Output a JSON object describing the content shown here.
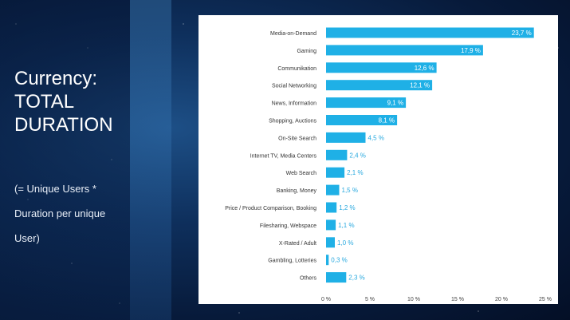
{
  "slide": {
    "title": "Currency: TOTAL DURATION",
    "subtitle": "(= Unique Users * Duration per unique User)"
  },
  "colors": {
    "bar": "#1fb0e6",
    "background": "#0e2f5c"
  },
  "chart_data": {
    "type": "bar",
    "orientation": "horizontal",
    "categories": [
      "Media-on-Demand",
      "Gaming",
      "Communikation",
      "Social Networking",
      "News, Information",
      "Shopping, Auctions",
      "On-Site Search",
      "Internet TV, Media Centers",
      "Web Search",
      "Banking, Money",
      "Price / Product Comparison, Booking",
      "Filesharing, Webspace",
      "X-Rated / Adult",
      "Gambling, Lotteries",
      "Others"
    ],
    "values": [
      23.7,
      17.9,
      12.6,
      12.1,
      9.1,
      8.1,
      4.5,
      2.4,
      2.1,
      1.5,
      1.2,
      1.1,
      1.0,
      0.3,
      2.3
    ],
    "value_labels": [
      "23,7 %",
      "17,9 %",
      "12,6 %",
      "12,1 %",
      "9,1 %",
      "8,1 %",
      "4,5 %",
      "2,4 %",
      "2,1 %",
      "1,5 %",
      "1,2 %",
      "1,1 %",
      "1,0 %",
      "0,3 %",
      "2,3 %"
    ],
    "xlim": [
      0,
      25
    ],
    "ticks": [
      0,
      5,
      10,
      15,
      20,
      25
    ],
    "tick_labels": [
      "0 %",
      "5 %",
      "10 %",
      "15 %",
      "20 %",
      "25 %"
    ],
    "grid": false,
    "legend": "none"
  }
}
